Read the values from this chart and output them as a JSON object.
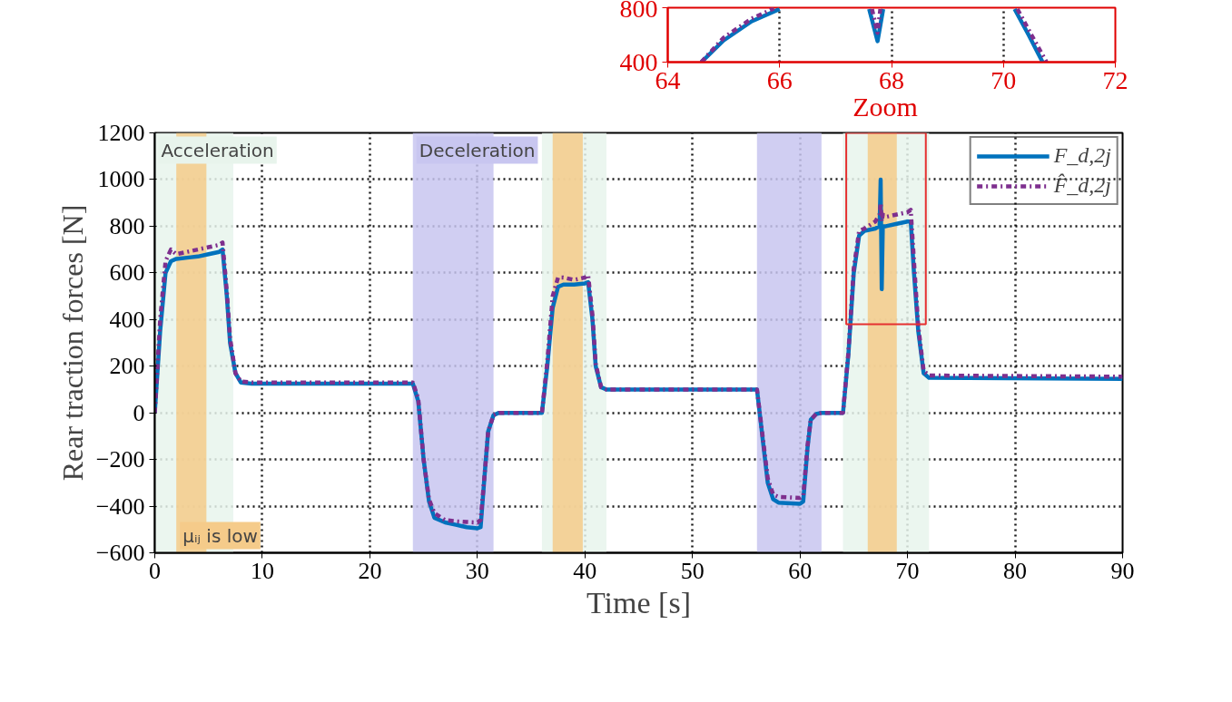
{
  "chart_data": [
    {
      "type": "line",
      "xlabel": "Time [s]",
      "ylabel": "Rear traction forces [N]",
      "xlim": [
        0,
        90
      ],
      "xticks": [
        0,
        10,
        20,
        30,
        40,
        50,
        60,
        70,
        80,
        90
      ],
      "ylim": [
        -600,
        1200
      ],
      "yticks": [
        -600,
        -400,
        -200,
        0,
        200,
        400,
        600,
        800,
        1000,
        1200
      ],
      "grid": true,
      "legend": "top right",
      "x": [
        0,
        0.5,
        1,
        1.5,
        2,
        3,
        4,
        5,
        6,
        6.3,
        6.7,
        7,
        7.5,
        8,
        9,
        24,
        24.5,
        25,
        25.5,
        26,
        27,
        28,
        29,
        30,
        30.3,
        30.7,
        31,
        31.5,
        32,
        36,
        36.5,
        37,
        37.5,
        38,
        39,
        40,
        40.3,
        40.7,
        41,
        41.5,
        42,
        56,
        56.5,
        57,
        57.5,
        58,
        60,
        60.3,
        60.7,
        61,
        61.5,
        62,
        64,
        64.5,
        65,
        65.5,
        66,
        67,
        67.4,
        67.5,
        67.6,
        67.7,
        68,
        69,
        70,
        70.3,
        70.6,
        71,
        71.5,
        72,
        90
      ],
      "series": [
        {
          "name": "F_d,2j",
          "color": "#0072bd",
          "line_style": "solid",
          "values": [
            0,
            350,
            600,
            650,
            660,
            665,
            670,
            680,
            690,
            700,
            500,
            300,
            170,
            130,
            125,
            125,
            50,
            -200,
            -380,
            -450,
            -470,
            -480,
            -490,
            -495,
            -490,
            -250,
            -80,
            -10,
            0,
            0,
            200,
            450,
            540,
            550,
            550,
            555,
            560,
            400,
            200,
            110,
            100,
            100,
            -100,
            -300,
            -370,
            -385,
            -390,
            -380,
            -150,
            -30,
            -5,
            0,
            0,
            250,
            600,
            760,
            780,
            790,
            800,
            1000,
            530,
            800,
            800,
            810,
            820,
            820,
            600,
            350,
            170,
            150,
            145
          ]
        },
        {
          "name": "F̂_d,2j",
          "color": "#7e2f8e",
          "line_style": "dashed",
          "values": [
            0,
            400,
            650,
            700,
            680,
            690,
            700,
            710,
            720,
            730,
            520,
            320,
            170,
            135,
            130,
            130,
            60,
            -200,
            -370,
            -430,
            -460,
            -465,
            -468,
            -470,
            -460,
            -250,
            -80,
            -10,
            0,
            0,
            220,
            500,
            580,
            580,
            570,
            580,
            590,
            420,
            210,
            110,
            100,
            100,
            -90,
            -280,
            -350,
            -360,
            -365,
            -355,
            -140,
            -30,
            -5,
            0,
            0,
            260,
            620,
            780,
            790,
            820,
            850,
            900,
            820,
            850,
            840,
            850,
            860,
            870,
            650,
            370,
            180,
            160,
            155
          ]
        }
      ],
      "bands": [
        {
          "axis": "x",
          "from": 0,
          "to": 7.3,
          "label": "Acceleration",
          "color": "#e8f4ec"
        },
        {
          "axis": "x",
          "from": 36,
          "to": 42,
          "color": "#e8f4ec"
        },
        {
          "axis": "x",
          "from": 64,
          "to": 72,
          "color": "#e8f4ec"
        },
        {
          "axis": "x",
          "from": 24,
          "to": 31.5,
          "label": "Deceleration",
          "color": "#c8c6f0"
        },
        {
          "axis": "x",
          "from": 56,
          "to": 62,
          "color": "#c8c6f0"
        },
        {
          "axis": "x",
          "from": 2,
          "to": 4.8,
          "label": "μᵢⱼ is low",
          "color": "#f5cb8a"
        },
        {
          "axis": "x",
          "from": 37,
          "to": 39.8,
          "color": "#f5cb8a"
        },
        {
          "axis": "x",
          "from": 66.3,
          "to": 69,
          "color": "#f5cb8a"
        }
      ],
      "annotations": [
        {
          "text": "Zoom",
          "x": 68,
          "y": 1200
        }
      ]
    },
    {
      "type": "line",
      "xlim": [
        64,
        72
      ],
      "xticks": [
        64,
        66,
        68,
        70,
        72
      ],
      "ylim": [
        400,
        800
      ],
      "yticks": [
        400,
        800
      ],
      "grid": "x",
      "series": [
        {
          "color": "#0072bd",
          "line_style": "solid",
          "x": [
            64.6,
            65,
            65.5,
            66,
            66.1,
            67.6,
            67.75,
            67.85,
            67.9,
            70.2,
            70.45,
            70.7
          ],
          "values": [
            400,
            560,
            700,
            790,
            null,
            790,
            554,
            790,
            null,
            790,
            600,
            400
          ]
        },
        {
          "color": "#7e2f8e",
          "line_style": "dashed",
          "x": [
            64.6,
            65,
            65.5,
            65.9,
            66,
            67.65,
            67.75,
            67.8,
            67.9,
            70.25,
            70.5,
            70.77
          ],
          "values": [
            400,
            580,
            720,
            795,
            null,
            790,
            615,
            790,
            null,
            790,
            600,
            400
          ]
        }
      ]
    }
  ]
}
